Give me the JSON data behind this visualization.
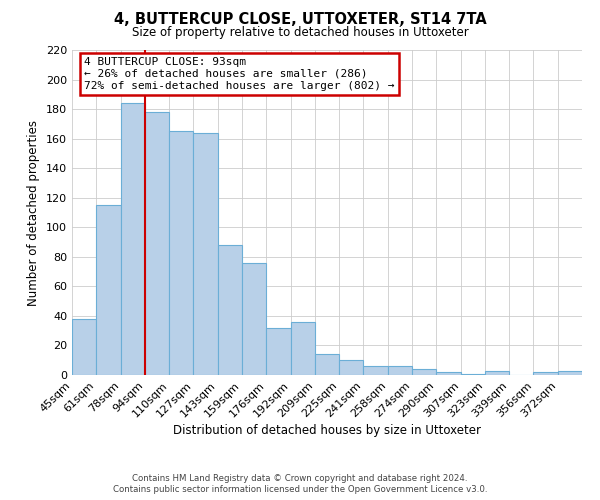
{
  "title": "4, BUTTERCUP CLOSE, UTTOXETER, ST14 7TA",
  "subtitle": "Size of property relative to detached houses in Uttoxeter",
  "xlabel": "Distribution of detached houses by size in Uttoxeter",
  "ylabel": "Number of detached properties",
  "bin_labels": [
    "45sqm",
    "61sqm",
    "78sqm",
    "94sqm",
    "110sqm",
    "127sqm",
    "143sqm",
    "159sqm",
    "176sqm",
    "192sqm",
    "209sqm",
    "225sqm",
    "241sqm",
    "258sqm",
    "274sqm",
    "290sqm",
    "307sqm",
    "323sqm",
    "339sqm",
    "356sqm",
    "372sqm"
  ],
  "bar_heights": [
    38,
    115,
    184,
    178,
    165,
    164,
    88,
    76,
    32,
    36,
    14,
    10,
    6,
    6,
    4,
    2,
    1,
    3,
    0,
    2,
    3
  ],
  "bar_color": "#b8d0e8",
  "bar_edge_color": "#6baed6",
  "grid_color": "#cccccc",
  "background_color": "#ffffff",
  "vline_x_index": 3,
  "vline_color": "#cc0000",
  "annotation_title": "4 BUTTERCUP CLOSE: 93sqm",
  "annotation_line1": "← 26% of detached houses are smaller (286)",
  "annotation_line2": "72% of semi-detached houses are larger (802) →",
  "annotation_box_color": "#ffffff",
  "annotation_box_edge": "#cc0000",
  "ylim": [
    0,
    220
  ],
  "yticks": [
    0,
    20,
    40,
    60,
    80,
    100,
    120,
    140,
    160,
    180,
    200,
    220
  ],
  "footer_line1": "Contains HM Land Registry data © Crown copyright and database right 2024.",
  "footer_line2": "Contains public sector information licensed under the Open Government Licence v3.0."
}
